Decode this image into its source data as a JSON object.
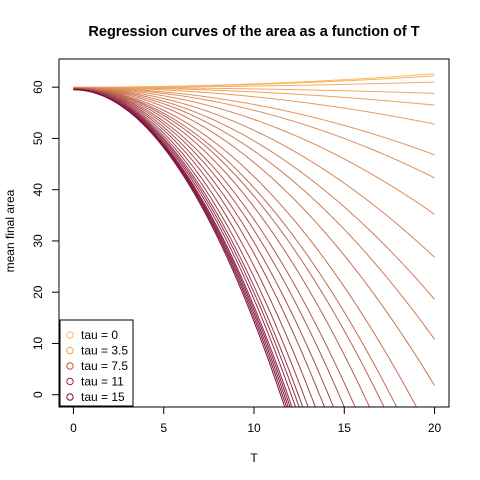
{
  "chart_data": {
    "type": "line",
    "title": "Regression curves of the area as a function of T",
    "xlabel": "T",
    "ylabel": "mean final area",
    "xlim": [
      -0.8,
      20.8
    ],
    "ylim": [
      -2.4,
      65.5
    ],
    "xticks": [
      0,
      5,
      10,
      15,
      20
    ],
    "yticks": [
      0,
      10,
      20,
      30,
      40,
      50,
      60
    ],
    "grid": false,
    "legend_position": "bottom-left",
    "legend": [
      {
        "label": "tau = 0",
        "color": "#FDB863"
      },
      {
        "label": "tau = 3.5",
        "color": "#F4A340"
      },
      {
        "label": "tau = 7.5",
        "color": "#E04A28"
      },
      {
        "label": "tau = 11",
        "color": "#B0184A"
      },
      {
        "label": "tau = 15",
        "color": "#7A0E40"
      }
    ],
    "color_start": "#FDB863",
    "color_end": "#7A0E40",
    "series_count": 31,
    "curve_start_y": [
      60.0,
      59.5
    ],
    "curve_end_y_at_T20": [
      62.6,
      62.2,
      61.0,
      58.8,
      56.5,
      52.8,
      46.8,
      42.3,
      35.2,
      26.8,
      18.6,
      10.8,
      1.8
    ],
    "curve_crossings_T_at_y_neg2": [
      19.0,
      17.9,
      17.2,
      16.4,
      15.6,
      15.0,
      14.4,
      13.9,
      13.4,
      13.0,
      12.7,
      12.5,
      12.3,
      12.1,
      12.0,
      11.9,
      11.8,
      11.7
    ]
  }
}
